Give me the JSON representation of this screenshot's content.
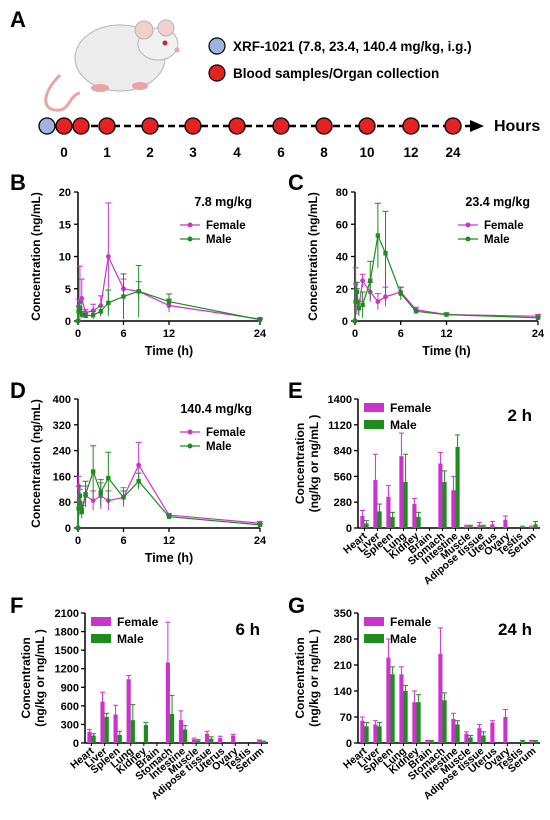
{
  "colors": {
    "female": "#CC33CC",
    "male": "#1E8C1E",
    "dose": "#9DB3E0",
    "blood": "#E52222",
    "axis": "#000000"
  },
  "panel_a": {
    "label": "A",
    "legend": [
      {
        "text": "XRF-1021 (7.8, 23.4, 140.4 mg/kg, i.g.)",
        "dot": "dose"
      },
      {
        "text": "Blood samples/Organ collection",
        "dot": "blood"
      }
    ],
    "timeline": {
      "points": [
        "0",
        "1",
        "2",
        "3",
        "4",
        "6",
        "8",
        "10",
        "12",
        "24"
      ],
      "arrow_label": "Hours"
    }
  },
  "chart_data": [
    {
      "panel": "B",
      "type": "line",
      "title": "7.8 mg/kg",
      "xlabel": "Time (h)",
      "ylabel": "Concentration (ng/mL)",
      "xlim": [
        0,
        24
      ],
      "ylim": [
        0,
        20
      ],
      "xticks": [
        0,
        6,
        12,
        24
      ],
      "yticks": [
        0,
        5,
        10,
        15,
        20
      ],
      "series": [
        {
          "name": "Female",
          "color": "female",
          "x": [
            0,
            0.083,
            0.25,
            0.5,
            1,
            2,
            3,
            4,
            6,
            8,
            12,
            24
          ],
          "y": [
            0,
            2.2,
            3.0,
            3.5,
            1.3,
            1.6,
            2.4,
            10.0,
            5.0,
            4.6,
            2.4,
            0.3
          ],
          "err": [
            0,
            1.2,
            5.5,
            3.0,
            0.5,
            1.0,
            1.5,
            8.3,
            1.5,
            1.5,
            1.0,
            0.2
          ]
        },
        {
          "name": "Male",
          "color": "male",
          "x": [
            0,
            0.083,
            0.25,
            0.5,
            1,
            2,
            3,
            4,
            6,
            8,
            12,
            24
          ],
          "y": [
            0,
            1.5,
            2.0,
            1.0,
            0.8,
            0.9,
            1.5,
            2.8,
            3.8,
            4.6,
            3.0,
            0.2
          ],
          "err": [
            0,
            0.8,
            0.9,
            0.5,
            0.3,
            0.6,
            0.8,
            2.0,
            3.5,
            4.0,
            1.2,
            0.1
          ]
        }
      ]
    },
    {
      "panel": "C",
      "type": "line",
      "title": "23.4 mg/kg",
      "xlabel": "Time (h)",
      "ylabel": "Concentration (ng/mL)",
      "xlim": [
        0,
        24
      ],
      "ylim": [
        0,
        80
      ],
      "xticks": [
        0,
        6,
        12,
        24
      ],
      "yticks": [
        0,
        20,
        40,
        60,
        80
      ],
      "series": [
        {
          "name": "Female",
          "color": "female",
          "x": [
            0,
            0.083,
            0.25,
            0.5,
            1,
            2,
            3,
            4,
            6,
            8,
            12,
            24
          ],
          "y": [
            0,
            23,
            12,
            8,
            25,
            18,
            12,
            15,
            18,
            7,
            4,
            3
          ],
          "err": [
            0,
            10,
            8,
            5,
            4,
            6,
            5,
            6,
            3,
            1.5,
            1,
            1
          ]
        },
        {
          "name": "Male",
          "color": "male",
          "x": [
            0,
            0.083,
            0.25,
            0.5,
            1,
            2,
            3,
            4,
            6,
            8,
            12,
            24
          ],
          "y": [
            0,
            12,
            18,
            8,
            10,
            25,
            53,
            42,
            17,
            6,
            4,
            2
          ],
          "err": [
            0,
            8,
            6,
            4,
            8,
            12,
            20,
            26,
            4,
            1,
            1,
            0.5
          ]
        }
      ]
    },
    {
      "panel": "D",
      "type": "line",
      "title": "140.4 mg/kg",
      "xlabel": "Time (h)",
      "ylabel": "Concentration (ng/mL)",
      "xlim": [
        0,
        24
      ],
      "ylim": [
        0,
        400
      ],
      "xticks": [
        0,
        6,
        12,
        24
      ],
      "yticks": [
        0,
        80,
        160,
        240,
        320,
        400
      ],
      "series": [
        {
          "name": "Female",
          "color": "female",
          "x": [
            0,
            0.083,
            0.25,
            0.5,
            1,
            2,
            3,
            4,
            6,
            8,
            12,
            24
          ],
          "y": [
            0,
            130,
            80,
            60,
            100,
            85,
            100,
            85,
            95,
            195,
            40,
            15
          ],
          "err": [
            0,
            30,
            40,
            20,
            30,
            30,
            40,
            30,
            30,
            70,
            5,
            5
          ]
        },
        {
          "name": "Male",
          "color": "male",
          "x": [
            0,
            0.083,
            0.25,
            0.5,
            1,
            2,
            3,
            4,
            6,
            8,
            12,
            24
          ],
          "y": [
            0,
            60,
            100,
            50,
            105,
            175,
            110,
            155,
            95,
            145,
            35,
            10
          ],
          "err": [
            0,
            20,
            30,
            20,
            40,
            80,
            40,
            80,
            20,
            25,
            5,
            3
          ]
        }
      ]
    },
    {
      "panel": "E",
      "type": "bar",
      "title": "2 h",
      "ylabel": "Concentration (ng/kg or ng/mL )",
      "ylim": [
        0,
        1400
      ],
      "yticks": [
        0,
        280,
        560,
        840,
        1120,
        1400
      ],
      "categories": [
        "Heart",
        "Liver",
        "Spleen",
        "Lung",
        "Kidney",
        "Brain",
        "Stomach",
        "Intestine",
        "Muscle",
        "Adipose tissue",
        "Uterus",
        "Ovary",
        "Testis",
        "Serum"
      ],
      "series": [
        {
          "name": "Female",
          "color": "female",
          "values": [
            130,
            520,
            340,
            780,
            260,
            0,
            700,
            410,
            20,
            30,
            40,
            90,
            0,
            10
          ],
          "err": [
            60,
            280,
            120,
            250,
            60,
            0,
            120,
            150,
            10,
            30,
            30,
            40,
            0,
            10
          ]
        },
        {
          "name": "Male",
          "color": "male",
          "values": [
            50,
            180,
            120,
            500,
            120,
            0,
            500,
            880,
            20,
            20,
            0,
            0,
            10,
            40
          ],
          "err": [
            30,
            80,
            50,
            300,
            50,
            0,
            120,
            130,
            10,
            10,
            0,
            0,
            10,
            30
          ]
        }
      ]
    },
    {
      "panel": "F",
      "type": "bar",
      "title": "6 h",
      "ylabel": "Concentration (ng/kg or ng/mL )",
      "ylim": [
        0,
        2100
      ],
      "yticks": [
        0,
        300,
        600,
        900,
        1200,
        1500,
        1800,
        2100
      ],
      "categories": [
        "Heart",
        "Liver",
        "Spleen",
        "Lung",
        "Kidney",
        "Brain",
        "Stomach",
        "Intestine",
        "Muscle",
        "Adipose tissue",
        "Uterus",
        "Ovary",
        "Testis",
        "Serum"
      ],
      "series": [
        {
          "name": "Female",
          "color": "female",
          "values": [
            180,
            670,
            460,
            1030,
            0,
            0,
            1300,
            370,
            60,
            150,
            80,
            120,
            0,
            40
          ],
          "err": [
            40,
            150,
            150,
            60,
            0,
            0,
            650,
            150,
            20,
            40,
            30,
            20,
            0,
            10
          ]
        },
        {
          "name": "Male",
          "color": "male",
          "values": [
            120,
            420,
            130,
            370,
            290,
            0,
            470,
            220,
            40,
            70,
            0,
            0,
            0,
            20
          ],
          "err": [
            30,
            60,
            60,
            250,
            40,
            0,
            300,
            60,
            15,
            30,
            0,
            0,
            0,
            10
          ]
        }
      ]
    },
    {
      "panel": "G",
      "type": "bar",
      "title": "24 h",
      "ylabel": "Concentration (ng/kg or ng/mL )",
      "ylim": [
        0,
        350
      ],
      "yticks": [
        0,
        70,
        140,
        210,
        280,
        350
      ],
      "categories": [
        "Heart",
        "Liver",
        "Spleen",
        "Lung",
        "Kidney",
        "Brain",
        "Stomach",
        "Intestine",
        "Muscle",
        "Adipose tissue",
        "Uterus",
        "Ovary",
        "Testis",
        "Serum"
      ],
      "series": [
        {
          "name": "Female",
          "color": "female",
          "values": [
            60,
            50,
            230,
            185,
            110,
            5,
            240,
            65,
            25,
            40,
            55,
            70,
            0,
            5
          ],
          "err": [
            10,
            10,
            50,
            20,
            30,
            2,
            70,
            15,
            5,
            10,
            5,
            20,
            0,
            2
          ]
        },
        {
          "name": "Male",
          "color": "male",
          "values": [
            45,
            45,
            185,
            140,
            110,
            5,
            115,
            50,
            15,
            20,
            0,
            0,
            5,
            5
          ],
          "err": [
            10,
            10,
            20,
            15,
            20,
            2,
            20,
            10,
            5,
            10,
            0,
            0,
            2,
            2
          ]
        }
      ]
    }
  ]
}
